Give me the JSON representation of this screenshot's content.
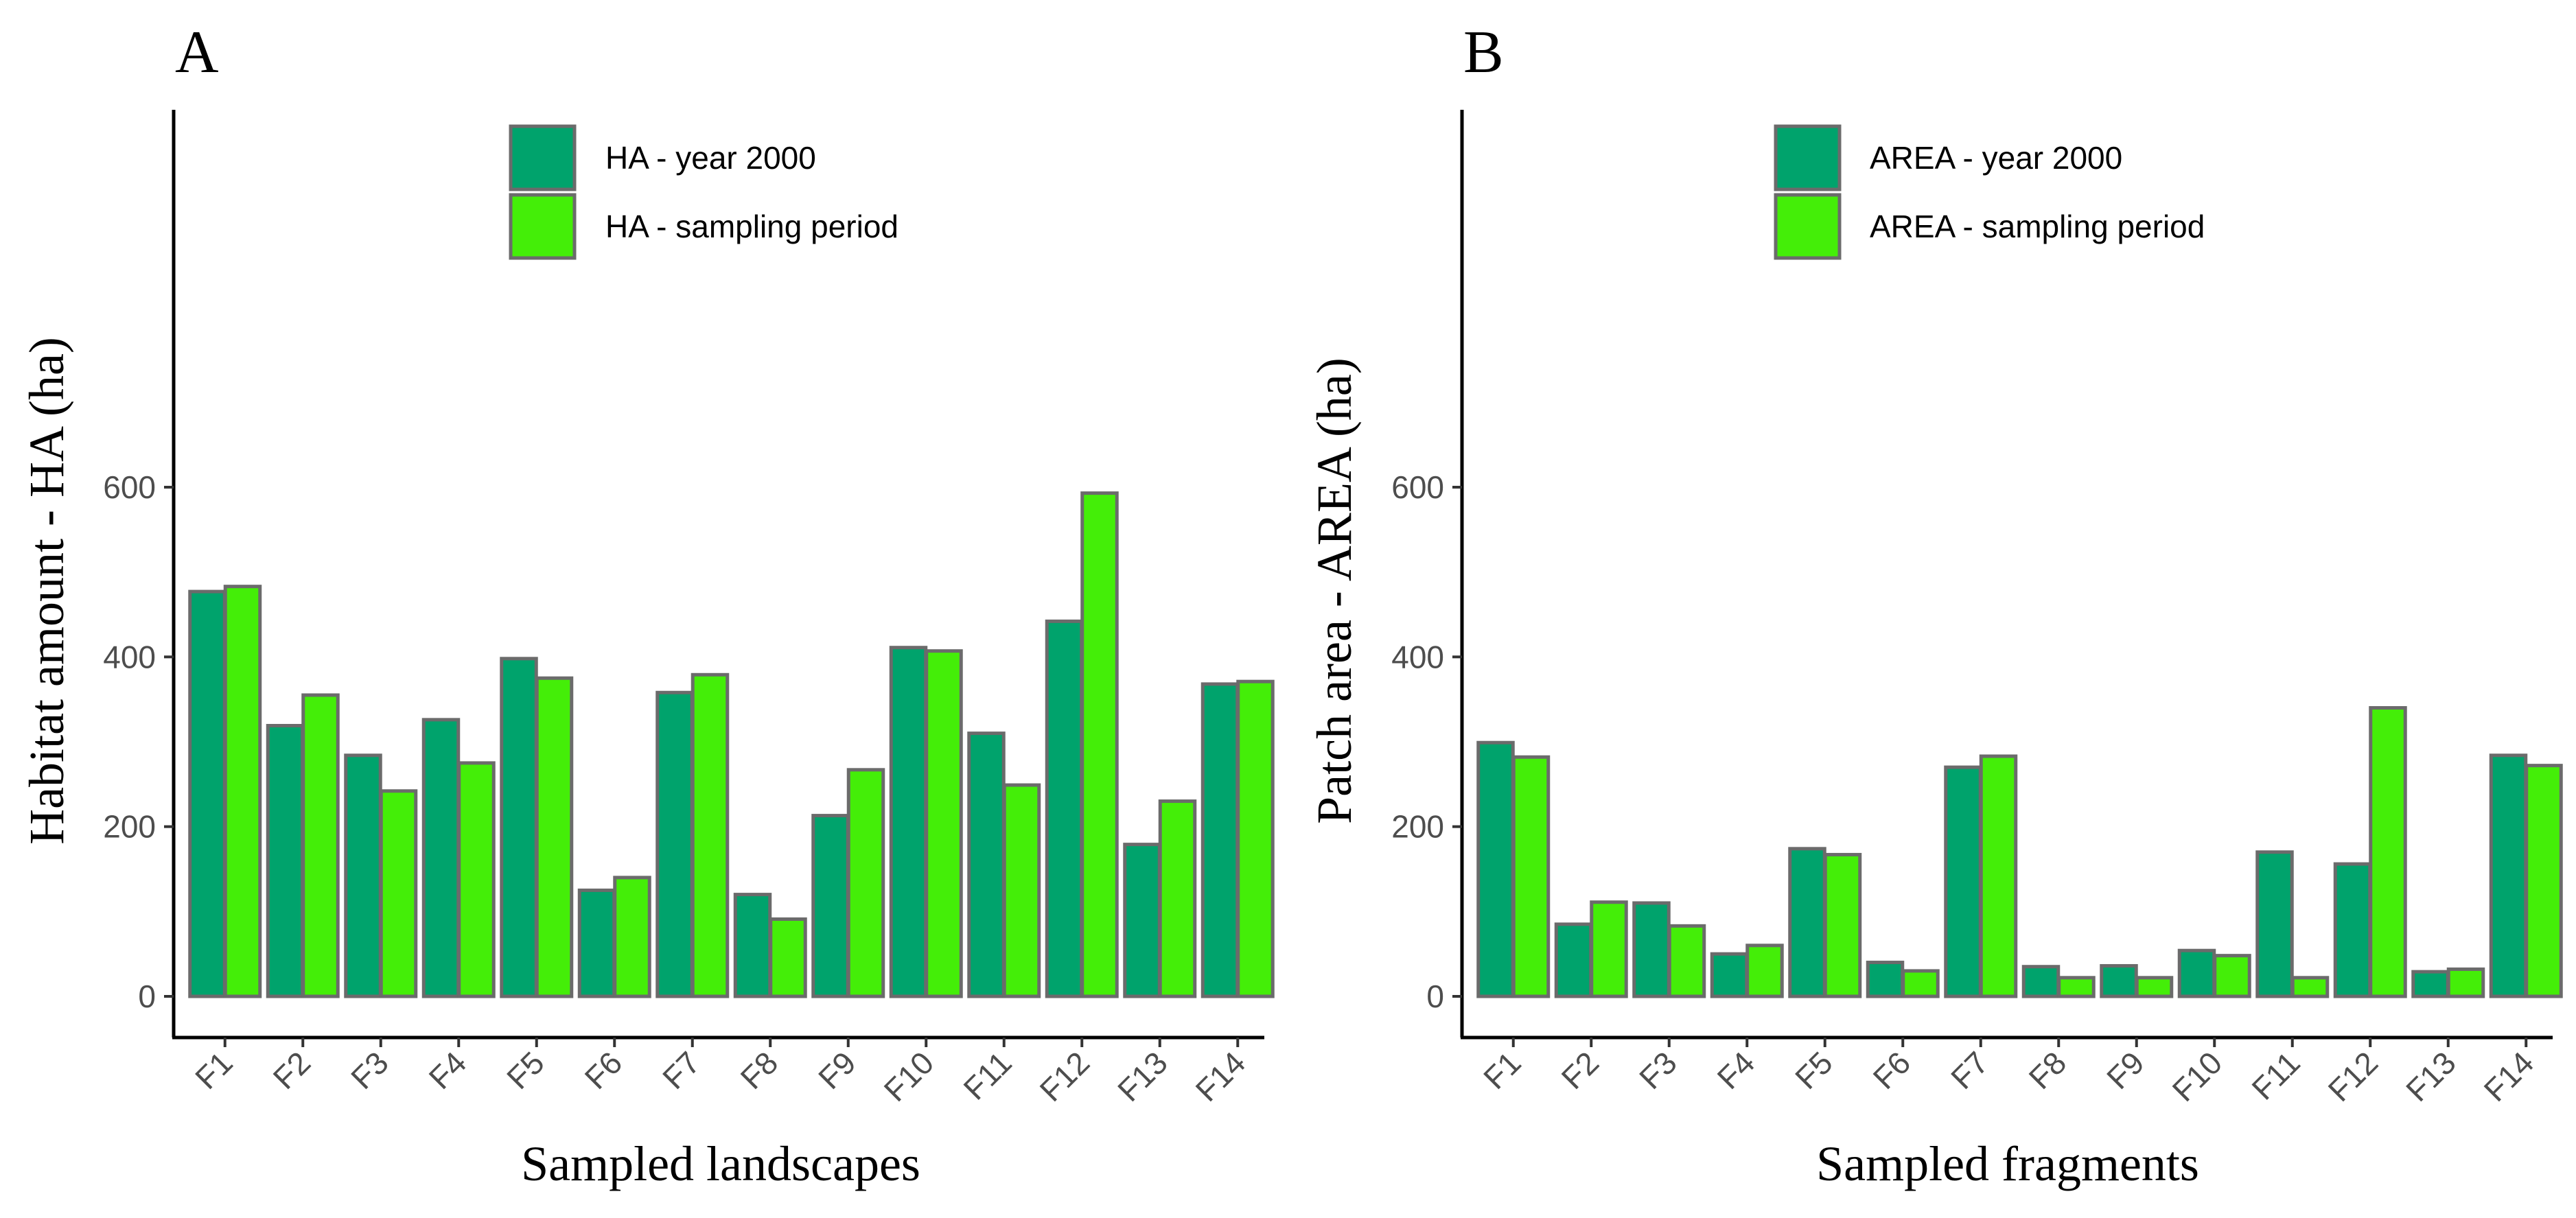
{
  "chart_data": [
    {
      "type": "bar",
      "panel_label": "A",
      "xlabel": "Sampled landscapes",
      "ylabel": "Habitat amount - HA (ha)",
      "categories": [
        "F1",
        "F2",
        "F3",
        "F4",
        "F5",
        "F6",
        "F7",
        "F8",
        "F9",
        "F10",
        "F11",
        "F12",
        "F13",
        "F14"
      ],
      "yticks": [
        0,
        200,
        400,
        600
      ],
      "ylim": [
        0,
        630
      ],
      "grid": false,
      "legend_position": "top-center",
      "series": [
        {
          "name": "HA -  year 2000",
          "color": "#00A36C",
          "values": [
            477,
            319,
            284,
            326,
            398,
            125,
            358,
            120,
            213,
            411,
            310,
            442,
            179,
            368
          ]
        },
        {
          "name": "HA - sampling period",
          "color": "#44EE08",
          "values": [
            483,
            355,
            242,
            275,
            375,
            140,
            379,
            91,
            267,
            407,
            249,
            593,
            230,
            371
          ]
        }
      ]
    },
    {
      "type": "bar",
      "panel_label": "B",
      "xlabel": "Sampled fragments",
      "ylabel": "Patch area - AREA (ha)",
      "categories": [
        "F1",
        "F2",
        "F3",
        "F4",
        "F5",
        "F6",
        "F7",
        "F8",
        "F9",
        "F10",
        "F11",
        "F12",
        "F13",
        "F14"
      ],
      "yticks": [
        0,
        200,
        400,
        600
      ],
      "ylim": [
        0,
        630
      ],
      "grid": false,
      "legend_position": "top-center",
      "series": [
        {
          "name": "AREA -  year 2000",
          "color": "#00A36C",
          "values": [
            299,
            85,
            110,
            50,
            174,
            40,
            270,
            35,
            36,
            54,
            170,
            156,
            29,
            284
          ]
        },
        {
          "name": "AREA - sampling period",
          "color": "#44EE08",
          "values": [
            282,
            111,
            83,
            60,
            167,
            30,
            283,
            22,
            22,
            48,
            22,
            340,
            32,
            272
          ]
        }
      ]
    }
  ]
}
